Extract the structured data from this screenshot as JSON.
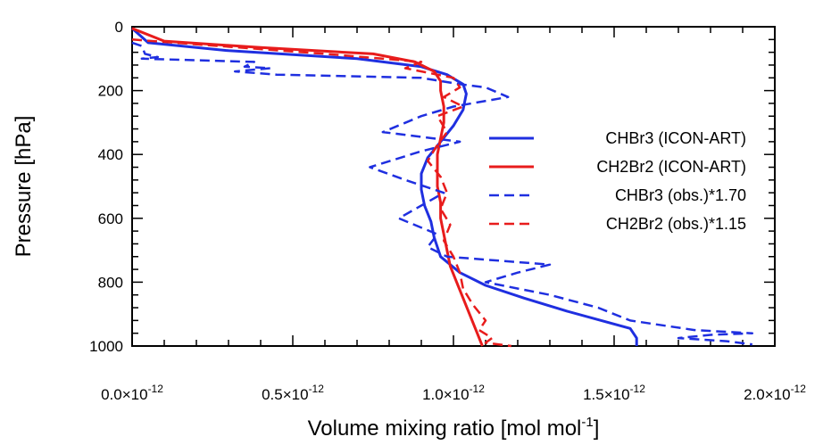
{
  "chart_data": {
    "type": "line",
    "title": "",
    "xlabel": "Volume mixing ratio [mol mol",
    "xlabel_sup": "-1",
    "xlabel_end": "]",
    "ylabel": "Pressure [hPa]",
    "xlim": [
      0,
      2e-12
    ],
    "ylim": [
      1000,
      0
    ],
    "y_inverted": true,
    "grid": false,
    "legend_position": "right-center",
    "x_ticks": [
      {
        "value": 0.0,
        "mantissa": "0.0×10",
        "exp": "-12"
      },
      {
        "value": 5e-13,
        "mantissa": "0.5×10",
        "exp": "-12"
      },
      {
        "value": 1e-12,
        "mantissa": "1.0×10",
        "exp": "-12"
      },
      {
        "value": 1.5e-12,
        "mantissa": "1.5×10",
        "exp": "-12"
      },
      {
        "value": 2e-12,
        "mantissa": "2.0×10",
        "exp": "-12"
      }
    ],
    "y_ticks": [
      {
        "value": 0,
        "label": "0"
      },
      {
        "value": 200,
        "label": "200"
      },
      {
        "value": 400,
        "label": "400"
      },
      {
        "value": 600,
        "label": "600"
      },
      {
        "value": 800,
        "label": "800"
      },
      {
        "value": 1000,
        "label": "1000"
      }
    ],
    "series": [
      {
        "name": "CHBr3 (ICON-ART)",
        "color": "#1f2fe0",
        "dash": "solid",
        "points": [
          [
            0.0,
            5
          ],
          [
            5e-14,
            50
          ],
          [
            3e-13,
            75
          ],
          [
            7e-13,
            100
          ],
          [
            9e-13,
            125
          ],
          [
            9.8e-13,
            150
          ],
          [
            1.03e-12,
            180
          ],
          [
            1.04e-12,
            210
          ],
          [
            1.03e-12,
            260
          ],
          [
            1e-12,
            310
          ],
          [
            9.6e-13,
            360
          ],
          [
            9.2e-13,
            410
          ],
          [
            9e-13,
            460
          ],
          [
            9e-13,
            510
          ],
          [
            9.1e-13,
            560
          ],
          [
            9.3e-13,
            610
          ],
          [
            9.4e-13,
            660
          ],
          [
            9.6e-13,
            720
          ],
          [
            1.02e-12,
            770
          ],
          [
            1.1e-12,
            810
          ],
          [
            1.22e-12,
            850
          ],
          [
            1.35e-12,
            890
          ],
          [
            1.46e-12,
            920
          ],
          [
            1.55e-12,
            945
          ],
          [
            1.57e-12,
            975
          ],
          [
            1.57e-12,
            1000
          ]
        ]
      },
      {
        "name": "CH2Br2 (ICON-ART)",
        "color": "#e81c1c",
        "dash": "solid",
        "points": [
          [
            0.0,
            5
          ],
          [
            1e-13,
            45
          ],
          [
            4e-13,
            65
          ],
          [
            7.5e-13,
            85
          ],
          [
            8.8e-13,
            110
          ],
          [
            9.4e-13,
            140
          ],
          [
            9.6e-13,
            170
          ],
          [
            9.6e-13,
            200
          ],
          [
            9.7e-13,
            250
          ],
          [
            9.7e-13,
            300
          ],
          [
            9.6e-13,
            350
          ],
          [
            9.5e-13,
            400
          ],
          [
            9.5e-13,
            450
          ],
          [
            9.5e-13,
            500
          ],
          [
            9.6e-13,
            550
          ],
          [
            9.6e-13,
            600
          ],
          [
            9.7e-13,
            650
          ],
          [
            9.8e-13,
            700
          ],
          [
            9.9e-13,
            750
          ],
          [
            1.01e-12,
            800
          ],
          [
            1.03e-12,
            850
          ],
          [
            1.05e-12,
            900
          ],
          [
            1.07e-12,
            950
          ],
          [
            1.09e-12,
            1000
          ]
        ]
      },
      {
        "name": "CHBr3 (obs.)*1.70",
        "color": "#1f2fe0",
        "dash": "dashed",
        "points": [
          [
            0.0,
            50
          ],
          [
            3e-14,
            60
          ],
          [
            4e-14,
            85
          ],
          [
            8e-14,
            95
          ],
          [
            3e-14,
            100
          ],
          [
            3.8e-13,
            110
          ],
          [
            3.5e-13,
            125
          ],
          [
            4.3e-13,
            130
          ],
          [
            3.2e-13,
            140
          ],
          [
            4.5e-13,
            150
          ],
          [
            9e-13,
            160
          ],
          [
            1.02e-12,
            180
          ],
          [
            1.1e-12,
            190
          ],
          [
            1.17e-12,
            220
          ],
          [
            1e-12,
            250
          ],
          [
            9e-13,
            280
          ],
          [
            7.8e-13,
            330
          ],
          [
            1.02e-12,
            360
          ],
          [
            9e-13,
            390
          ],
          [
            7.4e-13,
            440
          ],
          [
            8.5e-13,
            480
          ],
          [
            9.7e-13,
            520
          ],
          [
            8.3e-13,
            600
          ],
          [
            9.5e-13,
            650
          ],
          [
            9.2e-13,
            690
          ],
          [
            9.8e-13,
            720
          ],
          [
            1.3e-12,
            745
          ],
          [
            1.2e-12,
            770
          ],
          [
            1.1e-12,
            800
          ],
          [
            1.3e-12,
            840
          ],
          [
            1.45e-12,
            880
          ],
          [
            1.55e-12,
            920
          ],
          [
            1.75e-12,
            950
          ],
          [
            1.93e-12,
            960
          ],
          [
            1.8e-12,
            965
          ],
          [
            1.7e-12,
            975
          ],
          [
            1.85e-12,
            985
          ],
          [
            1.93e-12,
            995
          ]
        ]
      },
      {
        "name": "CH2Br2 (obs.)*1.15",
        "color": "#e81c1c",
        "dash": "dashed",
        "points": [
          [
            0.0,
            40
          ],
          [
            2e-13,
            55
          ],
          [
            6e-13,
            85
          ],
          [
            9e-13,
            110
          ],
          [
            8.5e-13,
            130
          ],
          [
            1e-12,
            160
          ],
          [
            1.02e-12,
            190
          ],
          [
            9.7e-13,
            220
          ],
          [
            1.03e-12,
            250
          ],
          [
            9.5e-13,
            280
          ],
          [
            9.8e-13,
            330
          ],
          [
            9.5e-13,
            370
          ],
          [
            9.2e-13,
            420
          ],
          [
            9.6e-13,
            470
          ],
          [
            9.8e-13,
            520
          ],
          [
            9.6e-13,
            570
          ],
          [
            9.9e-13,
            620
          ],
          [
            9.7e-13,
            670
          ],
          [
            1e-12,
            720
          ],
          [
            1.02e-12,
            770
          ],
          [
            1.03e-12,
            820
          ],
          [
            1.06e-12,
            870
          ],
          [
            1.1e-12,
            920
          ],
          [
            1.08e-12,
            950
          ],
          [
            1.12e-12,
            975
          ],
          [
            1.1e-12,
            990
          ],
          [
            1.18e-12,
            1000
          ]
        ]
      }
    ]
  }
}
